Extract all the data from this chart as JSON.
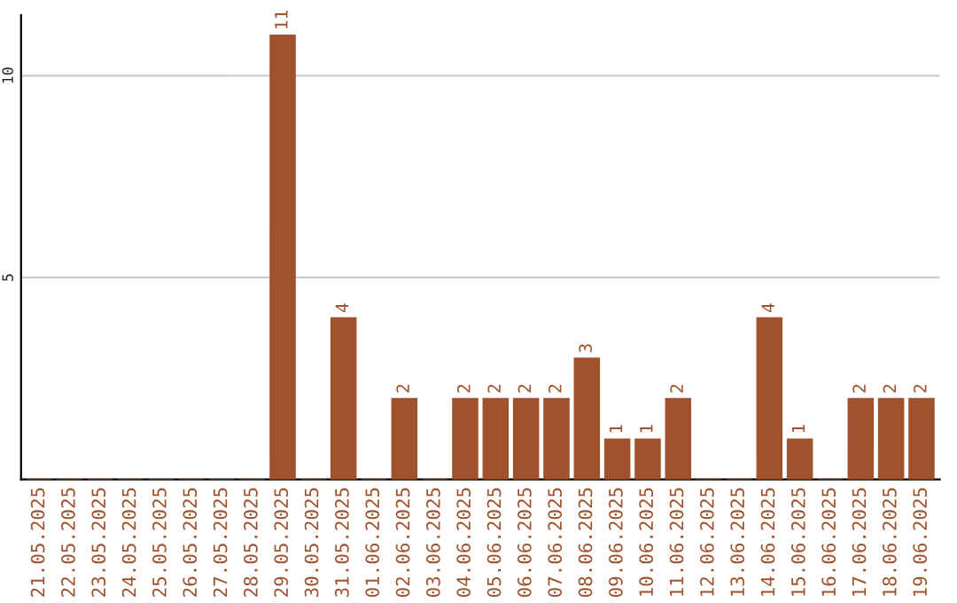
{
  "chart_data": {
    "type": "bar",
    "categories": [
      "21.05.2025",
      "22.05.2025",
      "23.05.2025",
      "24.05.2025",
      "25.05.2025",
      "26.05.2025",
      "27.05.2025",
      "28.05.2025",
      "29.05.2025",
      "30.05.2025",
      "31.05.2025",
      "01.06.2025",
      "02.06.2025",
      "03.06.2025",
      "04.06.2025",
      "05.06.2025",
      "06.06.2025",
      "07.06.2025",
      "08.06.2025",
      "09.06.2025",
      "10.06.2025",
      "11.06.2025",
      "12.06.2025",
      "13.06.2025",
      "14.06.2025",
      "15.06.2025",
      "16.06.2025",
      "17.06.2025",
      "18.06.2025",
      "19.06.2025"
    ],
    "values": [
      0,
      0,
      0,
      0,
      0,
      0,
      0,
      0,
      11,
      0,
      4,
      0,
      2,
      0,
      2,
      2,
      2,
      2,
      3,
      1,
      1,
      2,
      0,
      0,
      4,
      1,
      0,
      2,
      2,
      2
    ],
    "value_labels": [
      null,
      null,
      null,
      null,
      null,
      null,
      null,
      null,
      "11",
      null,
      "4",
      null,
      "2",
      null,
      "2",
      "2",
      "2",
      "2",
      "3",
      "1",
      "1",
      "2",
      null,
      null,
      "4",
      "1",
      null,
      "2",
      "2",
      "2"
    ],
    "color": "#a0522d",
    "ylim": [
      0,
      11.5
    ],
    "yticks": [
      5,
      10
    ],
    "grid": "y"
  }
}
